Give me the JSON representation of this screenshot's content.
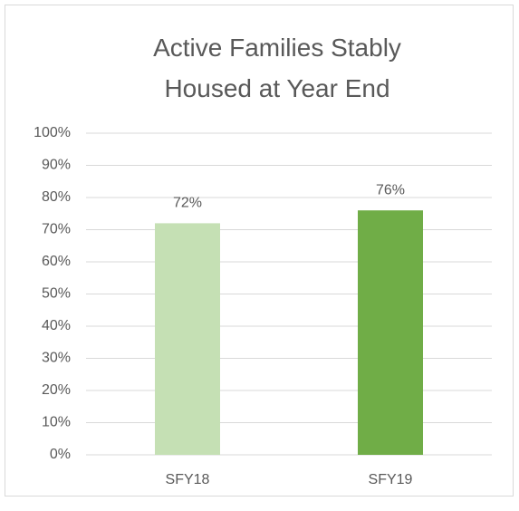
{
  "chart_data": {
    "type": "bar",
    "title": "Active Families Stably Housed at Year End",
    "categories": [
      "SFY18",
      "SFY19"
    ],
    "values": [
      72,
      76
    ],
    "value_labels": [
      "72%",
      "76%"
    ],
    "colors": [
      "#c5e0b4",
      "#70ad47"
    ],
    "ylim": [
      0,
      100
    ],
    "yticks": [
      {
        "value": 0,
        "label": "0%"
      },
      {
        "value": 10,
        "label": "10%"
      },
      {
        "value": 20,
        "label": "20%"
      },
      {
        "value": 30,
        "label": "30%"
      },
      {
        "value": 40,
        "label": "40%"
      },
      {
        "value": 50,
        "label": "50%"
      },
      {
        "value": 60,
        "label": "60%"
      },
      {
        "value": 70,
        "label": "70%"
      },
      {
        "value": 80,
        "label": "80%"
      },
      {
        "value": 90,
        "label": "90%"
      },
      {
        "value": 100,
        "label": "100%"
      }
    ],
    "grid": true
  }
}
